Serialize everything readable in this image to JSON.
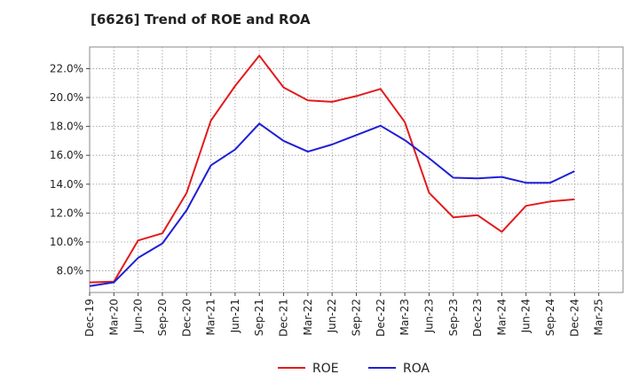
{
  "chart_data": {
    "type": "line",
    "title": "[6626]  Trend of ROE and ROA",
    "xlabel": "",
    "ylabel": "",
    "x": [
      "Dec-19",
      "Mar-20",
      "Jun-20",
      "Sep-20",
      "Dec-20",
      "Mar-21",
      "Jun-21",
      "Sep-21",
      "Dec-21",
      "Mar-22",
      "Jun-22",
      "Sep-22",
      "Dec-22",
      "Mar-23",
      "Jun-23",
      "Sep-23",
      "Dec-23",
      "Mar-24",
      "Jun-24",
      "Sep-24",
      "Dec-24"
    ],
    "x_ticks": [
      "Dec-19",
      "Mar-20",
      "Jun-20",
      "Sep-20",
      "Dec-20",
      "Mar-21",
      "Jun-21",
      "Sep-21",
      "Dec-21",
      "Mar-22",
      "Jun-22",
      "Sep-22",
      "Dec-22",
      "Mar-23",
      "Jun-23",
      "Sep-23",
      "Dec-23",
      "Mar-24",
      "Jun-24",
      "Sep-24",
      "Dec-24",
      "Mar-25"
    ],
    "y_ticks": [
      8.0,
      10.0,
      12.0,
      14.0,
      16.0,
      18.0,
      20.0,
      22.0
    ],
    "y_tick_labels": [
      "8.0%",
      "10.0%",
      "12.0%",
      "14.0%",
      "16.0%",
      "18.0%",
      "20.0%",
      "22.0%"
    ],
    "ylim": [
      6.5,
      23.5
    ],
    "grid": true,
    "legend_position": "bottom-center",
    "series": [
      {
        "name": "ROE",
        "color": "#e31a1c",
        "values": [
          7.2,
          7.25,
          10.1,
          10.6,
          13.4,
          18.4,
          20.8,
          22.9,
          20.7,
          19.8,
          19.7,
          20.1,
          20.6,
          18.3,
          13.4,
          11.7,
          11.85,
          10.7,
          12.5,
          12.8,
          12.95
        ]
      },
      {
        "name": "ROA",
        "color": "#1f1fd6",
        "values": [
          6.95,
          7.2,
          8.9,
          9.9,
          12.2,
          15.3,
          16.4,
          18.2,
          17.0,
          16.25,
          16.75,
          17.4,
          18.05,
          17.05,
          15.8,
          14.45,
          14.4,
          14.5,
          14.1,
          14.1,
          14.9
        ]
      }
    ]
  }
}
